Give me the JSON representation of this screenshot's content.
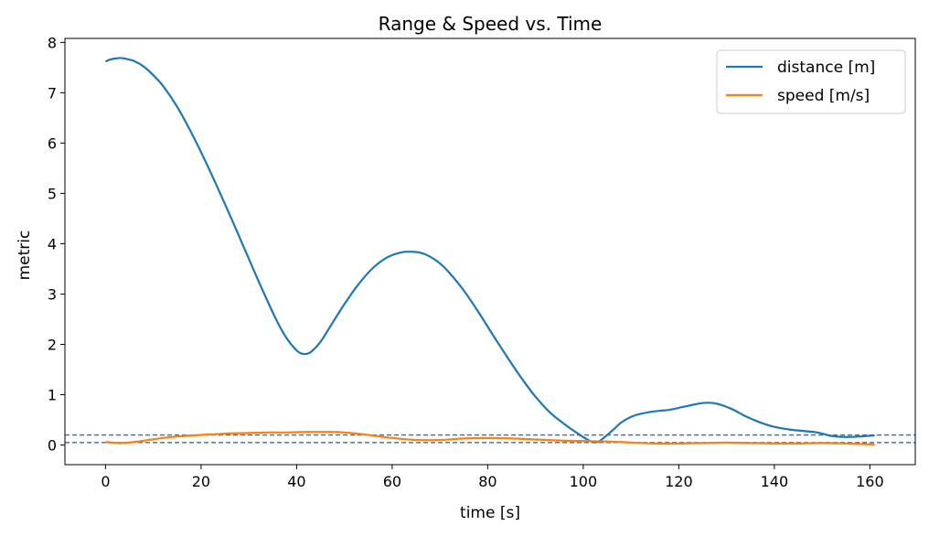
{
  "chart_data": {
    "type": "line",
    "title": "Range & Speed vs. Time",
    "xlabel": "time [s]",
    "ylabel": "metric",
    "xlim": [
      -8.5,
      169.5
    ],
    "ylim": [
      -0.39,
      8.08
    ],
    "xticks": [
      0,
      20,
      40,
      60,
      80,
      100,
      120,
      140,
      160
    ],
    "yticks": [
      0,
      1,
      2,
      3,
      4,
      5,
      6,
      7,
      8
    ],
    "grid": false,
    "legend_position": "top-right",
    "hlines": [
      {
        "y": 0.2,
        "color": "#1f77b4",
        "style": "dashed"
      },
      {
        "y": 0.05,
        "color": "#1f77b4",
        "style": "dashed"
      }
    ],
    "series": [
      {
        "name": "distance [m]",
        "color": "#1f77b4",
        "x": [
          0,
          1,
          2,
          3,
          4,
          6,
          8,
          10,
          12,
          15,
          18,
          21,
          24,
          27,
          30,
          33,
          36,
          38,
          40,
          41,
          42,
          43,
          45,
          47,
          50,
          53,
          56,
          59,
          62,
          64,
          66,
          68,
          70,
          72,
          75,
          78,
          81,
          84,
          87,
          90,
          93,
          96,
          99,
          101,
          102,
          103,
          104,
          106,
          108,
          110,
          112,
          115,
          118,
          121,
          124,
          126,
          128,
          131,
          134,
          137,
          140,
          143,
          146,
          149,
          152,
          155,
          158,
          161
        ],
        "y": [
          7.62,
          7.66,
          7.68,
          7.69,
          7.68,
          7.63,
          7.52,
          7.35,
          7.14,
          6.72,
          6.2,
          5.62,
          5.0,
          4.36,
          3.7,
          3.05,
          2.44,
          2.11,
          1.88,
          1.82,
          1.81,
          1.85,
          2.05,
          2.35,
          2.8,
          3.2,
          3.52,
          3.73,
          3.83,
          3.84,
          3.82,
          3.74,
          3.61,
          3.42,
          3.07,
          2.65,
          2.2,
          1.76,
          1.34,
          0.96,
          0.65,
          0.42,
          0.22,
          0.1,
          0.06,
          0.06,
          0.12,
          0.28,
          0.45,
          0.56,
          0.62,
          0.67,
          0.7,
          0.76,
          0.82,
          0.84,
          0.82,
          0.72,
          0.57,
          0.45,
          0.36,
          0.31,
          0.28,
          0.25,
          0.18,
          0.16,
          0.17,
          0.19
        ]
      },
      {
        "name": "speed [m/s]",
        "color": "#ff7f0e",
        "x": [
          0,
          3,
          6,
          9,
          12,
          15,
          18,
          22,
          26,
          30,
          34,
          38,
          42,
          46,
          50,
          55,
          60,
          65,
          70,
          75,
          80,
          85,
          90,
          95,
          100,
          105,
          110,
          115,
          120,
          125,
          130,
          135,
          140,
          145,
          150,
          155,
          158,
          161
        ],
        "y": [
          0.06,
          0.04,
          0.06,
          0.1,
          0.14,
          0.17,
          0.19,
          0.21,
          0.23,
          0.24,
          0.25,
          0.25,
          0.26,
          0.26,
          0.25,
          0.2,
          0.14,
          0.1,
          0.1,
          0.13,
          0.14,
          0.13,
          0.11,
          0.09,
          0.08,
          0.07,
          0.05,
          0.03,
          0.03,
          0.04,
          0.05,
          0.04,
          0.03,
          0.03,
          0.04,
          0.03,
          0.02,
          0.01
        ]
      }
    ]
  }
}
